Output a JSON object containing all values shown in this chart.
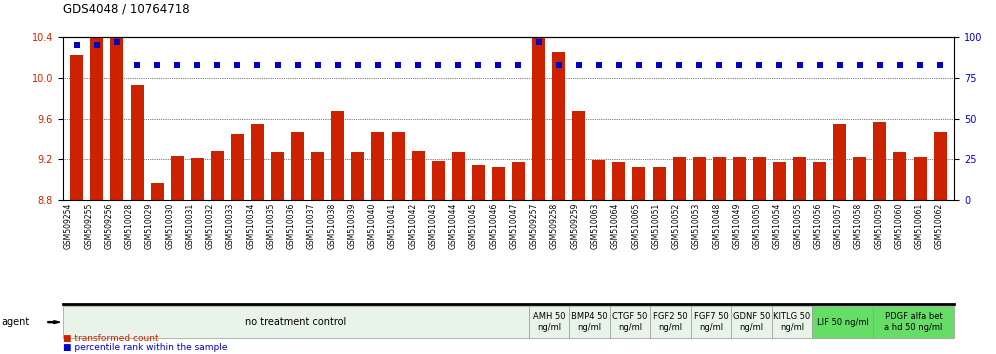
{
  "title": "GDS4048 / 10764718",
  "samples": [
    "GSM509254",
    "GSM509255",
    "GSM509256",
    "GSM510028",
    "GSM510029",
    "GSM510030",
    "GSM510031",
    "GSM510032",
    "GSM510033",
    "GSM510034",
    "GSM510035",
    "GSM510036",
    "GSM510037",
    "GSM510038",
    "GSM510039",
    "GSM510040",
    "GSM510041",
    "GSM510042",
    "GSM510043",
    "GSM510044",
    "GSM510045",
    "GSM510046",
    "GSM510047",
    "GSM509257",
    "GSM509258",
    "GSM509259",
    "GSM510063",
    "GSM510064",
    "GSM510065",
    "GSM510051",
    "GSM510052",
    "GSM510053",
    "GSM510048",
    "GSM510049",
    "GSM510050",
    "GSM510054",
    "GSM510055",
    "GSM510056",
    "GSM510057",
    "GSM510058",
    "GSM510059",
    "GSM510060",
    "GSM510061",
    "GSM510062"
  ],
  "bar_values": [
    10.22,
    10.47,
    10.87,
    9.93,
    8.97,
    9.23,
    9.21,
    9.28,
    9.45,
    9.55,
    9.27,
    9.47,
    9.27,
    9.67,
    9.27,
    9.47,
    9.47,
    9.28,
    9.18,
    9.27,
    9.14,
    9.12,
    9.17,
    10.42,
    10.25,
    9.67,
    9.19,
    9.17,
    9.12,
    9.12,
    9.22,
    9.22,
    9.22,
    9.22,
    9.22,
    9.17,
    9.22,
    9.17,
    9.55,
    9.22,
    9.57,
    9.27,
    9.22,
    9.47
  ],
  "percentile_values": [
    95,
    95,
    97,
    83,
    83,
    83,
    83,
    83,
    83,
    83,
    83,
    83,
    83,
    83,
    83,
    83,
    83,
    83,
    83,
    83,
    83,
    83,
    83,
    97,
    83,
    83,
    83,
    83,
    83,
    83,
    83,
    83,
    83,
    83,
    83,
    83,
    83,
    83,
    83,
    83,
    83,
    83,
    83,
    83
  ],
  "ylim_left": [
    8.8,
    10.4
  ],
  "ylim_right": [
    0,
    100
  ],
  "yticks_left": [
    8.8,
    9.2,
    9.6,
    10.0,
    10.4
  ],
  "yticks_right": [
    0,
    25,
    50,
    75,
    100
  ],
  "bar_color": "#cc2200",
  "dot_color": "#0000cc",
  "bg_color": "#f0f0f0",
  "agent_groups": [
    {
      "label": "no treatment control",
      "start": 0,
      "end": 23,
      "color": "#e8f4e8",
      "fontsize": 7
    },
    {
      "label": "AMH 50\nng/ml",
      "start": 23,
      "end": 25,
      "color": "#e8f4e8",
      "fontsize": 6
    },
    {
      "label": "BMP4 50\nng/ml",
      "start": 25,
      "end": 27,
      "color": "#e8f4e8",
      "fontsize": 6
    },
    {
      "label": "CTGF 50\nng/ml",
      "start": 27,
      "end": 29,
      "color": "#e8f4e8",
      "fontsize": 6
    },
    {
      "label": "FGF2 50\nng/ml",
      "start": 29,
      "end": 31,
      "color": "#e8f4e8",
      "fontsize": 6
    },
    {
      "label": "FGF7 50\nng/ml",
      "start": 31,
      "end": 33,
      "color": "#e8f4e8",
      "fontsize": 6
    },
    {
      "label": "GDNF 50\nng/ml",
      "start": 33,
      "end": 35,
      "color": "#e8f4e8",
      "fontsize": 6
    },
    {
      "label": "KITLG 50\nng/ml",
      "start": 35,
      "end": 37,
      "color": "#e8f4e8",
      "fontsize": 6
    },
    {
      "label": "LIF 50 ng/ml",
      "start": 37,
      "end": 40,
      "color": "#66dd66",
      "fontsize": 6
    },
    {
      "label": "PDGF alfa bet\na hd 50 ng/ml",
      "start": 40,
      "end": 44,
      "color": "#66dd66",
      "fontsize": 6
    }
  ],
  "legend_items": [
    {
      "label": "transformed count",
      "color": "#cc2200"
    },
    {
      "label": "percentile rank within the sample",
      "color": "#0000cc"
    }
  ]
}
